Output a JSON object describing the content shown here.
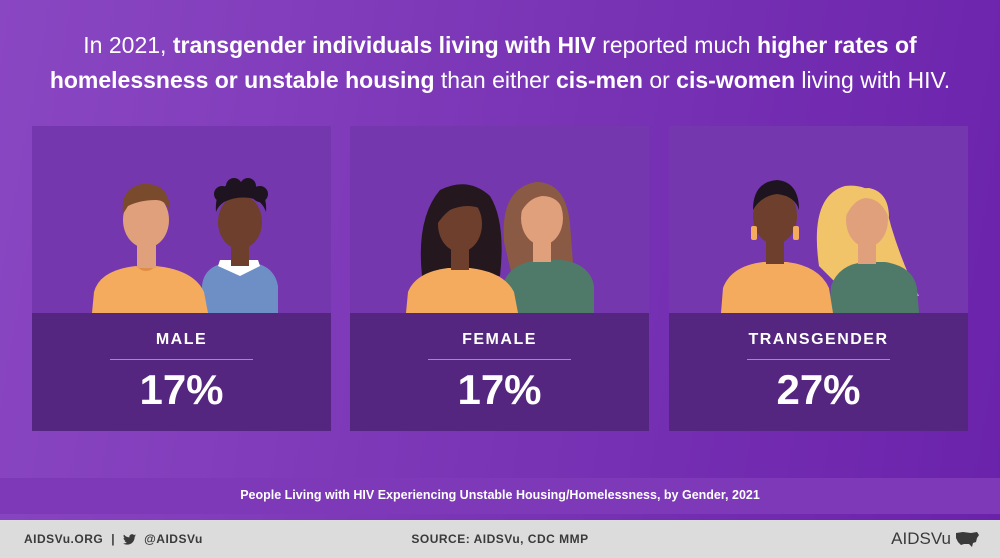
{
  "headline": {
    "p1": "In 2021, ",
    "b1": "transgender individuals living with HIV",
    "p2": " reported much ",
    "b2": "higher rates of homelessness or unstable housing",
    "p3": " than either ",
    "b3": "cis-men",
    "p4": " or ",
    "b4": "cis-women",
    "p5": " living with HIV."
  },
  "chart_data": {
    "type": "bar",
    "title": "People Living with HIV Experiencing Unstable Housing/Homelessness, by Gender, 2021",
    "categories": [
      "MALE",
      "FEMALE",
      "TRANSGENDER"
    ],
    "values": [
      17,
      17,
      27
    ],
    "value_labels": [
      "17%",
      "17%",
      "27%"
    ],
    "unit": "%"
  },
  "cards": [
    {
      "label": "MALE",
      "value": "17%",
      "illustration": "two-men-icon"
    },
    {
      "label": "FEMALE",
      "value": "17%",
      "illustration": "two-women-icon"
    },
    {
      "label": "TRANSGENDER",
      "value": "27%",
      "illustration": "two-transgender-people-icon"
    }
  ],
  "caption": "People Living with HIV Experiencing Unstable Housing/Homelessness, by Gender, 2021",
  "footer": {
    "site": "AIDSVu.ORG",
    "separator": "|",
    "twitter_icon": "twitter-bird-icon",
    "twitter": "@AIDSVu",
    "source": "SOURCE: AIDSVu, CDC MMP",
    "brand": "AIDSVu",
    "brand_icon": "us-map-icon"
  },
  "colors": {
    "background": "#7a35b6",
    "card": "#7437ad",
    "panel": "#55267f",
    "footer": "#dcdcdc",
    "skin_light": "#e0a07c",
    "skin_medium": "#a46c4c",
    "skin_dark": "#6e3f2c",
    "shirt_orange": "#f4ab5e",
    "shirt_blue": "#6e8fc6",
    "shirt_green": "#4f7a6a"
  }
}
